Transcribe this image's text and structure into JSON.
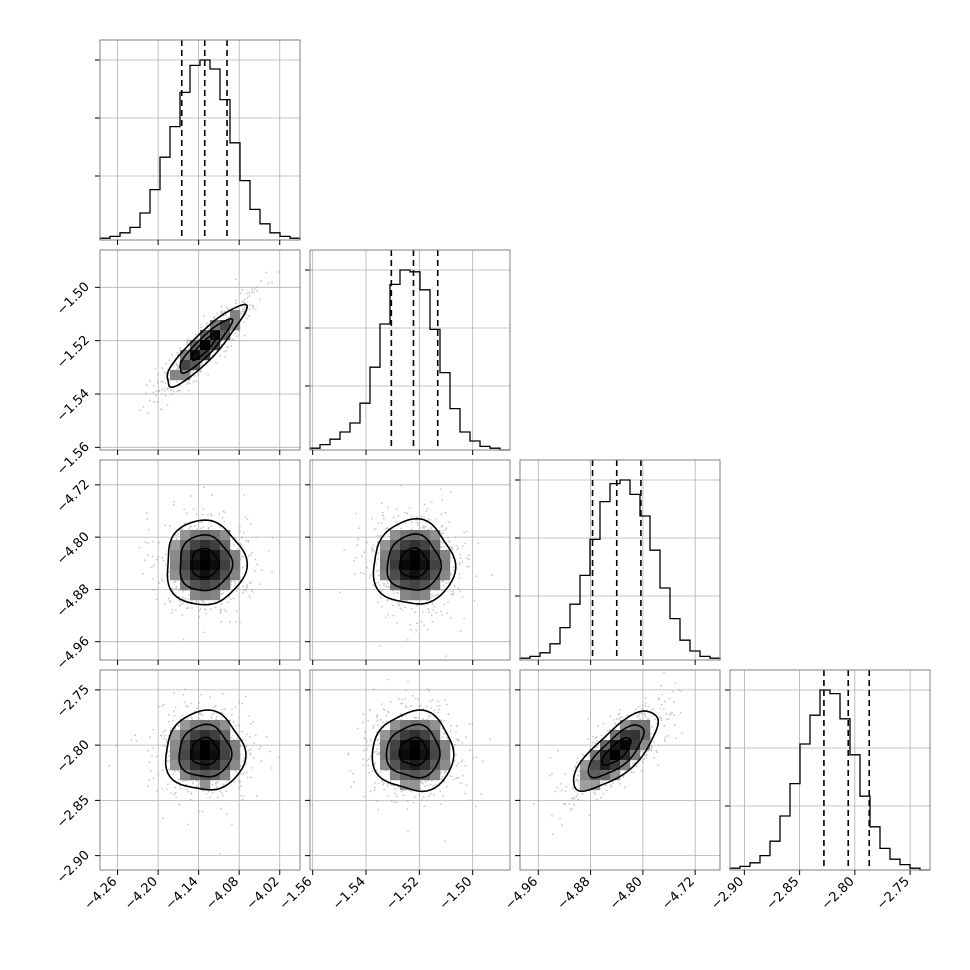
{
  "chart_data": {
    "type": "corner",
    "n_params": 4,
    "parameters": [
      {
        "index": 0,
        "range": [
          -4.286,
          -3.99
        ],
        "ticks": [
          -4.26,
          -4.2,
          -4.14,
          -4.08,
          -4.02
        ],
        "tick_labels": [
          "−4.26",
          "−4.20",
          "−4.14",
          "−4.08",
          "−4.02"
        ],
        "quantiles": [
          -4.165,
          -4.131,
          -4.098
        ],
        "histogram": [
          1,
          2,
          4,
          7,
          15,
          28,
          46,
          63,
          82,
          97,
          100,
          95,
          78,
          54,
          33,
          17,
          9,
          4,
          2,
          1
        ]
      },
      {
        "index": 1,
        "range": [
          -1.561,
          -1.486
        ],
        "ticks": [
          -1.56,
          -1.54,
          -1.52,
          -1.5
        ],
        "tick_labels": [
          "−1.56",
          "−1.54",
          "−1.52",
          "−1.50"
        ],
        "quantiles": [
          -1.5305,
          -1.5222,
          -1.5131
        ],
        "histogram": [
          1,
          3,
          6,
          10,
          15,
          26,
          46,
          70,
          92,
          100,
          99,
          89,
          67,
          43,
          23,
          10,
          5,
          2,
          1,
          0
        ]
      },
      {
        "index": 2,
        "range": [
          -4.988,
          -4.682
        ],
        "ticks": [
          -4.96,
          -4.88,
          -4.8,
          -4.72
        ],
        "tick_labels": [
          "−4.96",
          "−4.88",
          "−4.80",
          "−4.72"
        ],
        "quantiles": [
          -4.877,
          -4.84,
          -4.803
        ],
        "histogram": [
          1,
          2,
          4,
          9,
          18,
          31,
          47,
          67,
          88,
          98,
          100,
          92,
          80,
          61,
          40,
          23,
          11,
          5,
          2,
          1
        ]
      },
      {
        "index": 3,
        "range": [
          -2.913,
          -2.732
        ],
        "ticks": [
          -2.9,
          -2.85,
          -2.8,
          -2.75
        ],
        "tick_labels": [
          "−2.90",
          "−2.85",
          "−2.80",
          "−2.75"
        ],
        "quantiles": [
          -2.828,
          -2.806,
          -2.787
        ],
        "histogram": [
          1,
          2,
          4,
          8,
          16,
          30,
          48,
          70,
          86,
          100,
          98,
          84,
          64,
          41,
          24,
          12,
          6,
          3,
          1,
          0
        ]
      }
    ],
    "correlations": [
      [
        1,
        0.9,
        0,
        0
      ],
      [
        0.9,
        1,
        0,
        0
      ],
      [
        0,
        0,
        1,
        0.75
      ],
      [
        0,
        0,
        0.75,
        1
      ]
    ],
    "grid": true,
    "xlabel": "",
    "ylabel": "",
    "title": ""
  },
  "colors": {
    "line": "#000000",
    "grid": "#b0b0b0",
    "frame": "#808080",
    "points": "#9a9a9a",
    "background": "#ffffff"
  }
}
